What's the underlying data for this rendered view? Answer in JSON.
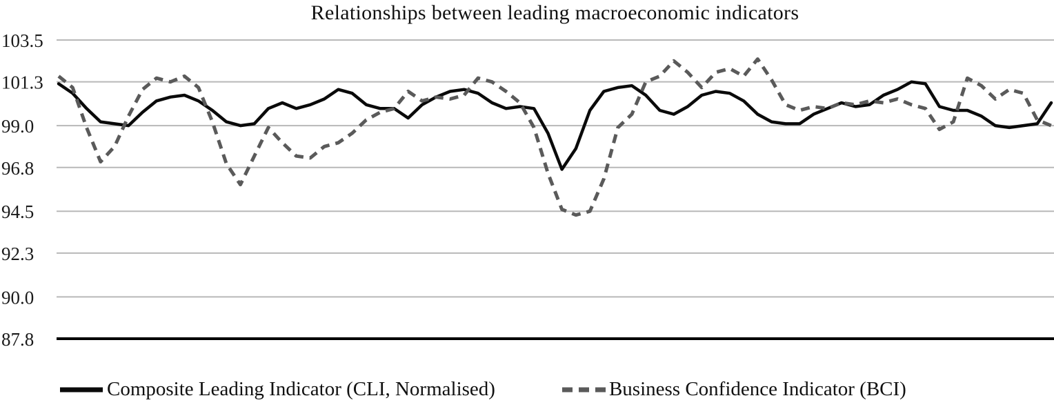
{
  "chart_data": {
    "type": "line",
    "title": "Relationships between leading macroeconomic indicators",
    "xlabel": "",
    "ylabel": "",
    "ylim": [
      87.8,
      103.5
    ],
    "yticks": [
      103.5,
      101.3,
      99.0,
      96.8,
      94.5,
      92.3,
      90.0,
      87.8
    ],
    "xticks": [],
    "grid": "horizontal",
    "legend_position": "bottom",
    "colors": {
      "cli_line": "#0a0a0a",
      "bci_line": "#5a5a5a",
      "gridline": "#b8b8b8",
      "baseline": "#000000"
    },
    "series": [
      {
        "name": "Composite Leading Indicator (CLI, Normalised)",
        "style": "solid",
        "color": "#0a0a0a",
        "values": [
          101.2,
          100.7,
          99.9,
          99.2,
          99.1,
          99.0,
          99.7,
          100.3,
          100.5,
          100.6,
          100.3,
          99.8,
          99.2,
          99.0,
          99.1,
          99.9,
          100.2,
          99.9,
          100.1,
          100.4,
          100.9,
          100.7,
          100.1,
          99.9,
          99.9,
          99.4,
          100.1,
          100.5,
          100.8,
          100.9,
          100.7,
          100.2,
          99.9,
          100.0,
          99.9,
          98.6,
          96.7,
          97.8,
          99.8,
          100.8,
          101.0,
          101.1,
          100.6,
          99.8,
          99.6,
          100.0,
          100.6,
          100.8,
          100.7,
          100.3,
          99.6,
          99.2,
          99.1,
          99.1,
          99.6,
          99.9,
          100.2,
          100.0,
          100.1,
          100.6,
          100.9,
          101.3,
          101.2,
          100.0,
          99.8,
          99.8,
          99.5,
          99.0,
          98.9,
          99.0,
          99.1,
          100.2
        ]
      },
      {
        "name": "Business Confidence Indicator (BCI)",
        "style": "dashed",
        "color": "#5a5a5a",
        "values": [
          101.6,
          101.0,
          98.9,
          97.1,
          97.9,
          99.5,
          100.9,
          101.5,
          101.3,
          101.6,
          101.0,
          99.2,
          97.0,
          95.9,
          97.4,
          98.9,
          98.1,
          97.4,
          97.3,
          97.9,
          98.1,
          98.6,
          99.3,
          99.7,
          99.9,
          100.8,
          100.3,
          100.5,
          100.4,
          100.6,
          101.5,
          101.3,
          100.8,
          100.2,
          98.9,
          96.5,
          94.6,
          94.3,
          94.5,
          96.2,
          98.9,
          99.6,
          101.3,
          101.6,
          102.4,
          101.8,
          101.0,
          101.8,
          102.0,
          101.6,
          102.5,
          101.4,
          100.1,
          99.8,
          100.0,
          99.9,
          100.2,
          100.1,
          100.3,
          100.2,
          100.4,
          100.1,
          99.9,
          98.8,
          99.2,
          101.5,
          101.1,
          100.4,
          100.9,
          100.7,
          99.3,
          99.0
        ]
      }
    ]
  }
}
